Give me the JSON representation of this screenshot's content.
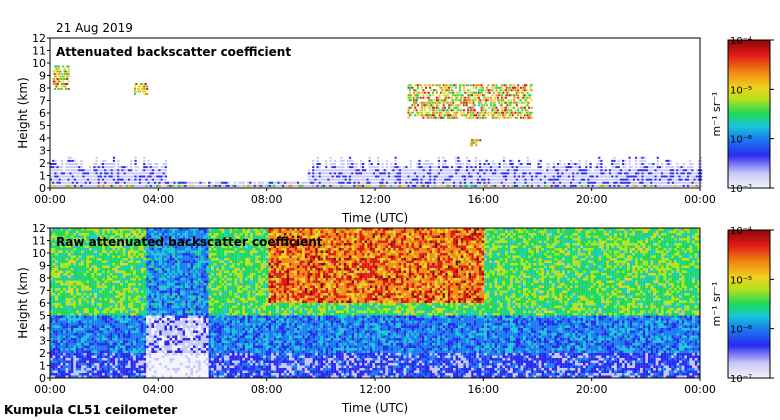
{
  "header": {
    "date": "21 Aug 2019"
  },
  "footer": {
    "instrument": "Kumpula CL51 ceilometer"
  },
  "colors": {
    "scale": [
      "#f4f4fc",
      "#c8c8f8",
      "#2a2af0",
      "#1a7cf0",
      "#18c8d8",
      "#1ed85a",
      "#b4e21e",
      "#f0d020",
      "#f08a10",
      "#e01818",
      "#8a0808"
    ],
    "panel_border": "#000000",
    "background": "#ffffff"
  },
  "chart_data": [
    {
      "type": "heatmap",
      "title": "Attenuated backscatter coefficient",
      "xlabel": "Time (UTC)",
      "ylabel": "Height (km)",
      "x_ticks": [
        "00:00",
        "04:00",
        "08:00",
        "12:00",
        "16:00",
        "20:00",
        "00:00"
      ],
      "x_range_hours": [
        0,
        24
      ],
      "y_ticks": [
        0,
        1,
        2,
        3,
        4,
        5,
        6,
        7,
        8,
        9,
        10,
        11,
        12
      ],
      "ylim": [
        0,
        12
      ],
      "colorbar": {
        "label": "m⁻¹ sr⁻¹",
        "scale": "log",
        "ticks": [
          "10⁻⁷",
          "10⁻⁶",
          "10⁻⁵",
          "10⁻⁴"
        ],
        "range": [
          1e-07,
          0.0001
        ]
      },
      "features": [
        {
          "name": "boundary layer",
          "t_start": 0,
          "t_end": 24,
          "top_km": 1.6
        },
        {
          "name": "cloud",
          "t_start": 0.1,
          "t_end": 0.7,
          "base_km": 7.8,
          "top_km": 9.6
        },
        {
          "name": "cloud",
          "t_start": 3.1,
          "t_end": 3.6,
          "base_km": 7.4,
          "top_km": 8.3
        },
        {
          "name": "cloud",
          "t_start": 13.2,
          "t_end": 17.8,
          "base_km": 5.5,
          "top_km": 8.2
        },
        {
          "name": "cloud",
          "t_start": 15.5,
          "t_end": 15.9,
          "base_km": 3.3,
          "top_km": 3.8
        }
      ]
    },
    {
      "type": "heatmap",
      "title": "Raw attenuated backscatter coefficient",
      "xlabel": "Time (UTC)",
      "ylabel": "Height (km)",
      "x_ticks": [
        "00:00",
        "04:00",
        "08:00",
        "12:00",
        "16:00",
        "20:00",
        "00:00"
      ],
      "x_range_hours": [
        0,
        24
      ],
      "y_ticks": [
        0,
        1,
        2,
        3,
        4,
        5,
        6,
        7,
        8,
        9,
        10,
        11,
        12
      ],
      "ylim": [
        0,
        12
      ],
      "colorbar": {
        "label": "m⁻¹ sr⁻¹",
        "scale": "log",
        "ticks": [
          "10⁻⁷",
          "10⁻⁶",
          "10⁻⁵",
          "10⁻⁴"
        ],
        "range": [
          1e-07,
          0.0001
        ]
      }
    }
  ]
}
